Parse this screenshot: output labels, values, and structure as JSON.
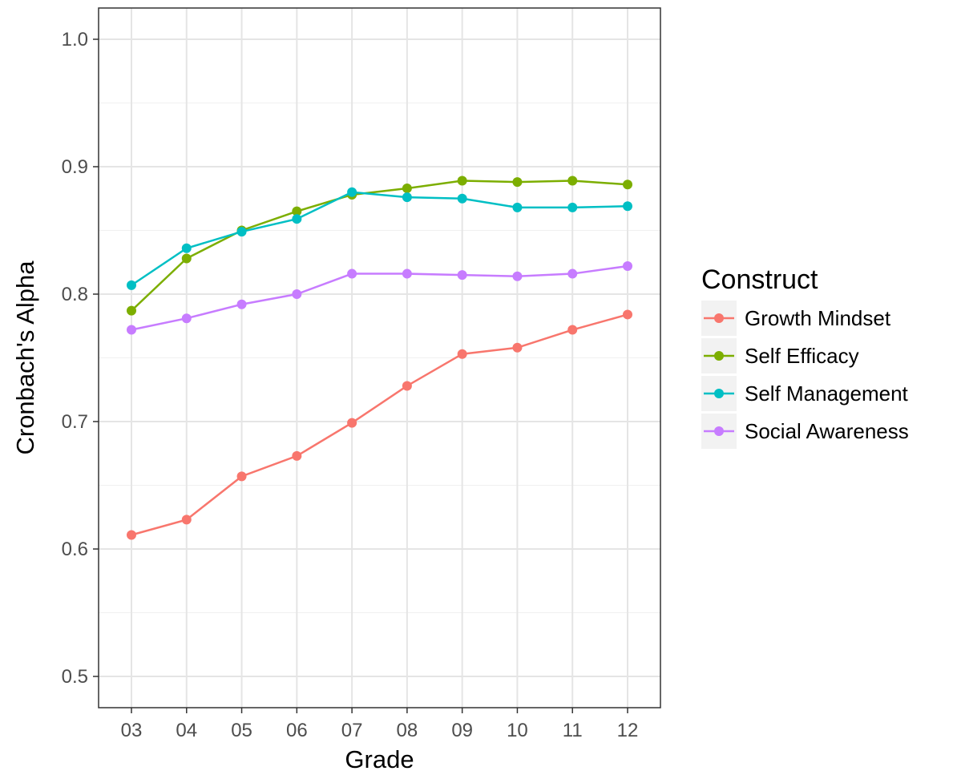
{
  "chart_data": {
    "type": "line",
    "title": "",
    "xlabel": "Grade",
    "ylabel": "Cronbach's Alpha",
    "categories": [
      "03",
      "04",
      "05",
      "06",
      "07",
      "08",
      "09",
      "10",
      "11",
      "12"
    ],
    "yticks": [
      "0.5",
      "0.6",
      "0.7",
      "0.8",
      "0.9",
      "1.0"
    ],
    "ylim": [
      0.47,
      1.02
    ],
    "grid": true,
    "legend": {
      "title": "Construct",
      "position": "right"
    },
    "series": [
      {
        "name": "Growth Mindset",
        "color": "#F8766D",
        "values": [
          0.611,
          0.623,
          0.657,
          0.673,
          0.699,
          0.728,
          0.753,
          0.758,
          0.772,
          0.784
        ]
      },
      {
        "name": "Self Efficacy",
        "color": "#7CAE00",
        "values": [
          0.787,
          0.828,
          0.85,
          0.865,
          0.878,
          0.883,
          0.889,
          0.888,
          0.889,
          0.886
        ]
      },
      {
        "name": "Self Management",
        "color": "#00BFC4",
        "values": [
          0.807,
          0.836,
          0.849,
          0.859,
          0.88,
          0.876,
          0.875,
          0.868,
          0.868,
          0.869
        ]
      },
      {
        "name": "Social Awareness",
        "color": "#C77CFF",
        "values": [
          0.772,
          0.781,
          0.792,
          0.8,
          0.816,
          0.816,
          0.815,
          0.814,
          0.816,
          0.822
        ]
      }
    ]
  }
}
